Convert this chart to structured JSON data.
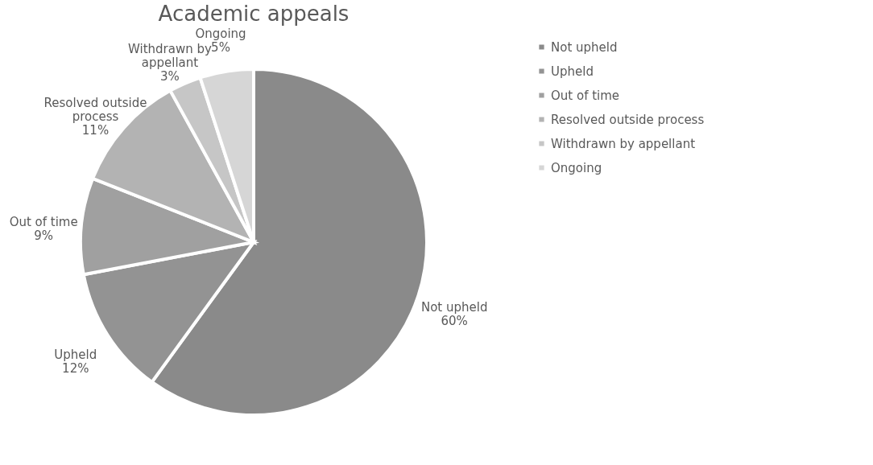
{
  "chart_data": {
    "type": "pie",
    "title": "Academic appeals",
    "categories": [
      "Not upheld",
      "Upheld",
      "Out of time",
      "Resolved outside process",
      "Withdrawn by appellant",
      "Ongoing"
    ],
    "values": [
      60,
      12,
      9,
      11,
      3,
      5
    ],
    "value_labels": [
      "60%",
      "12%",
      "9%",
      "11%",
      "3%",
      "5%"
    ],
    "colors": [
      "#8a8a8a",
      "#939393",
      "#a0a0a0",
      "#b3b3b3",
      "#c6c6c6",
      "#d6d6d6"
    ],
    "legend": "right"
  }
}
